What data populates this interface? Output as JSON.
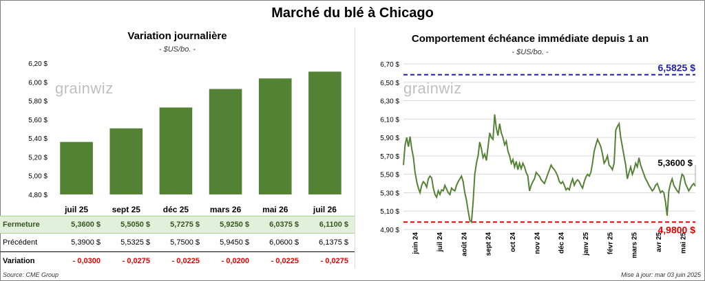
{
  "main_title": "Marché du blé à Chicago",
  "logo_text": "grainwiz",
  "footer": {
    "source": "Source: CME Group",
    "updated": "Mise à jour: mar 03 juin 2025"
  },
  "table": {
    "rows": [
      {
        "label": "Fermeture",
        "values": [
          "5,3600  $",
          "5,5050  $",
          "5,7275  $",
          "5,9250  $",
          "6,0375  $",
          "6,1100  $"
        ]
      },
      {
        "label": "Précédent",
        "values": [
          "5,3900  $",
          "5,5325  $",
          "5,7500  $",
          "5,9450  $",
          "6,0600  $",
          "6,1375  $"
        ]
      },
      {
        "label": "Variation",
        "values": [
          "- 0,0300",
          "- 0,0275",
          "- 0,0225",
          "- 0,0200",
          "- 0,0225",
          "- 0,0275"
        ]
      }
    ]
  },
  "chart_data": [
    {
      "type": "bar",
      "title": "Variation journalière",
      "subtitle": "- $US/bo. -",
      "categories": [
        "juil 25",
        "sept 25",
        "déc 25",
        "mars 26",
        "mai 26",
        "juil 26"
      ],
      "values": [
        5.36,
        5.505,
        5.7275,
        5.925,
        6.0375,
        6.11
      ],
      "ylim": [
        4.8,
        6.2
      ],
      "yticks": [
        4.8,
        5.0,
        5.2,
        5.4,
        5.6,
        5.8,
        6.0,
        6.2
      ],
      "ytick_labels": [
        "4,80 $",
        "5,00 $",
        "5,20 $",
        "5,40 $",
        "5,60 $",
        "5,80 $",
        "6,00 $",
        "6,20 $"
      ],
      "color": "#548235",
      "grid": false
    },
    {
      "type": "line",
      "title": "Comportement échéance immédiate depuis 1 an",
      "subtitle": "- $US/bo. -",
      "x_labels": [
        "juin 24",
        "juil 24",
        "août 24",
        "sept 24",
        "oct 24",
        "nov 24",
        "déc 24",
        "janv 25",
        "févr 25",
        "mars 25",
        "avr 25",
        "mai 25"
      ],
      "ylim": [
        4.9,
        6.7
      ],
      "yticks": [
        4.9,
        5.1,
        5.3,
        5.5,
        5.7,
        5.9,
        6.1,
        6.3,
        6.5,
        6.7
      ],
      "ytick_labels": [
        "4,90 $",
        "5,10 $",
        "5,30 $",
        "5,50 $",
        "5,70 $",
        "5,90 $",
        "6,10 $",
        "6,30 $",
        "6,50 $",
        "6,70 $"
      ],
      "values": [
        5.6,
        5.82,
        5.9,
        5.8,
        5.91,
        5.78,
        5.68,
        5.52,
        5.42,
        5.35,
        5.3,
        5.38,
        5.42,
        5.4,
        5.36,
        5.45,
        5.48,
        5.46,
        5.35,
        5.28,
        5.25,
        5.32,
        5.28,
        5.33,
        5.32,
        5.38,
        5.34,
        5.3,
        5.28,
        5.35,
        5.33,
        5.32,
        5.38,
        5.42,
        5.45,
        5.48,
        5.42,
        5.3,
        5.22,
        5.1,
        5.0,
        4.98,
        5.2,
        5.5,
        5.62,
        5.7,
        5.85,
        5.78,
        5.68,
        5.72,
        5.65,
        5.8,
        5.95,
        5.9,
        5.88,
        6.15,
        6.0,
        5.92,
        6.05,
        5.95,
        5.9,
        5.82,
        5.86,
        5.75,
        5.7,
        5.62,
        5.66,
        5.58,
        5.64,
        5.55,
        5.62,
        5.56,
        5.62,
        5.58,
        5.52,
        5.48,
        5.32,
        5.38,
        5.42,
        5.45,
        5.52,
        5.5,
        5.48,
        5.44,
        5.42,
        5.4,
        5.45,
        5.5,
        5.55,
        5.6,
        5.57,
        5.55,
        5.52,
        5.48,
        5.42,
        5.4,
        5.42,
        5.38,
        5.33,
        5.35,
        5.33,
        5.4,
        5.45,
        5.38,
        5.42,
        5.44,
        5.42,
        5.38,
        5.35,
        5.42,
        5.47,
        5.5,
        5.48,
        5.52,
        5.62,
        5.75,
        5.82,
        5.88,
        5.84,
        5.8,
        5.72,
        5.62,
        5.65,
        5.7,
        5.6,
        5.58,
        5.55,
        5.62,
        5.98,
        6.02,
        6.05,
        5.9,
        5.8,
        5.7,
        5.6,
        5.45,
        5.52,
        5.58,
        5.5,
        5.55,
        5.62,
        5.58,
        5.68,
        5.6,
        5.55,
        5.5,
        5.45,
        5.42,
        5.38,
        5.35,
        5.32,
        5.34,
        5.38,
        5.4,
        5.35,
        5.3,
        5.32,
        5.3,
        5.2,
        5.05,
        5.32,
        5.4,
        5.45,
        5.38,
        5.35,
        5.32,
        5.3,
        5.42,
        5.5,
        5.48,
        5.4,
        5.36,
        5.32,
        5.35,
        5.38,
        5.4,
        5.37
      ],
      "reference_lines": [
        {
          "value": 6.5825,
          "label": "6,5825  $",
          "color": "#1f1fa8"
        },
        {
          "value": 4.98,
          "label": "4,9800  $",
          "color": "#e00000"
        }
      ],
      "last_value_label": "5,3600 $",
      "color": "#548235",
      "grid": true
    }
  ]
}
